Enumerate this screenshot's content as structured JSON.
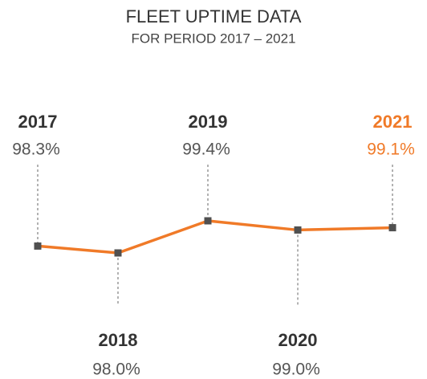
{
  "chart_data": {
    "type": "line",
    "title": "FLEET UPTIME DATA",
    "subtitle": "FOR PERIOD 2017 – 2021",
    "categories": [
      "2017",
      "2018",
      "2019",
      "2020",
      "2021"
    ],
    "values": [
      98.3,
      98.0,
      99.4,
      99.0,
      99.1
    ],
    "value_labels": [
      "98.3%",
      "98.0%",
      "99.4%",
      "99.0%",
      "99.1%"
    ],
    "color": "#f07a28",
    "marker_color": "#505050",
    "highlight_category": "2021",
    "highlight_color": "#f07a28"
  }
}
